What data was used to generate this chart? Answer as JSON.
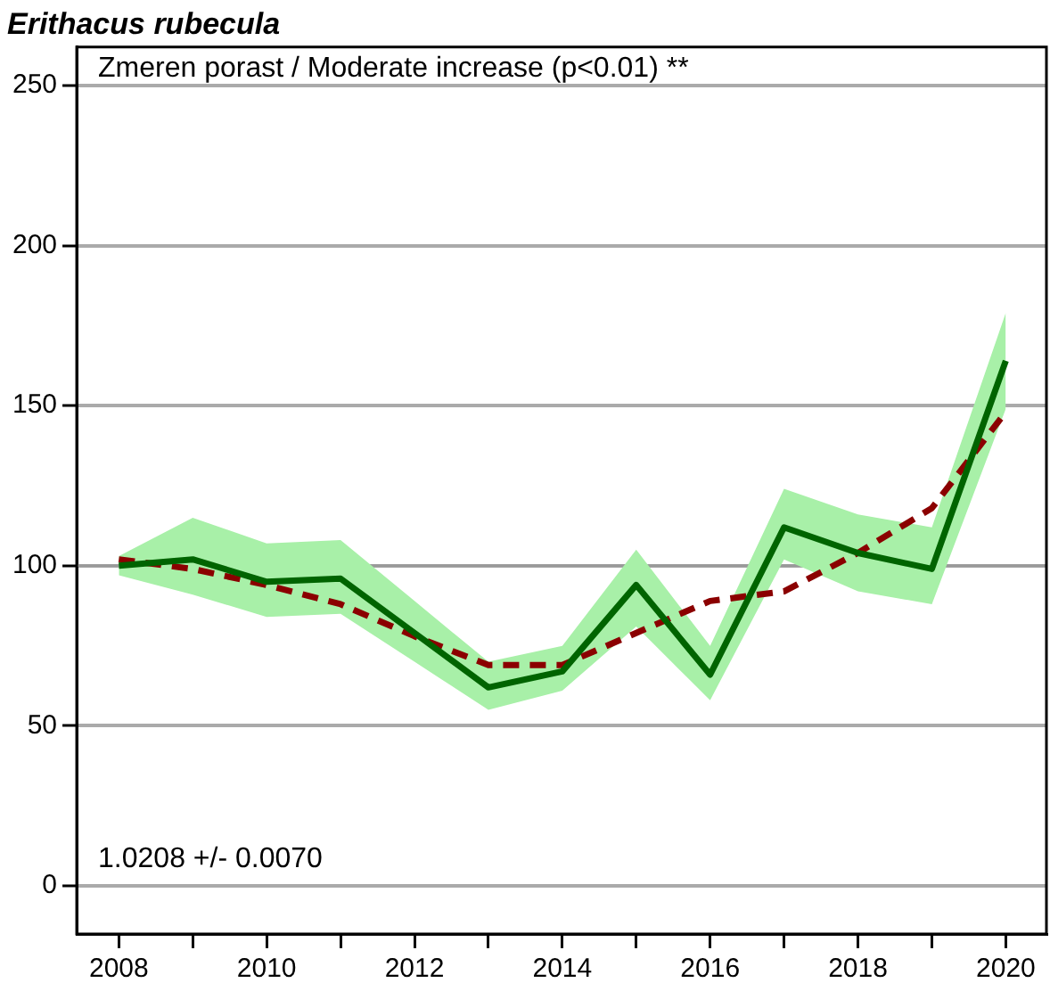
{
  "chart_data": {
    "type": "line",
    "title": "Erithacus rubecula",
    "annotations": [
      "Zmeren porast / Moderate increase (p<0.01) **",
      "1.0208 +/- 0.0070"
    ],
    "x": [
      2008,
      2009,
      2010,
      2011,
      2012,
      2013,
      2014,
      2015,
      2016,
      2017,
      2018,
      2019,
      2020
    ],
    "series": [
      {
        "color": "#006400",
        "line_style": "solid",
        "values": [
          100,
          102,
          95,
          96,
          79,
          62,
          67,
          94,
          66,
          112,
          104,
          99,
          164
        ],
        "lower": [
          97,
          91,
          84,
          85,
          70,
          55,
          61,
          81,
          58,
          102,
          92,
          88,
          149
        ],
        "upper": [
          103,
          115,
          107,
          108,
          89,
          70,
          75,
          105,
          75,
          124,
          116,
          112,
          179
        ]
      },
      {
        "color": "#8b0000",
        "line_style": "dashed",
        "values": [
          102,
          99,
          94,
          88,
          78,
          69,
          69,
          79,
          89,
          92,
          104,
          118,
          148
        ]
      }
    ],
    "xlim": [
      2007.43,
      2020.55
    ],
    "xticks": [
      2008,
      {
        "value": 2009,
        "label": null
      },
      2010,
      {
        "value": 2011,
        "label": null
      },
      2012,
      {
        "value": 2013,
        "label": null
      },
      2014,
      {
        "value": 2015,
        "label": null
      },
      2016,
      {
        "value": 2017,
        "label": null
      },
      2018,
      {
        "value": 2019,
        "label": null
      },
      2020
    ],
    "ylim": [
      -15,
      262
    ],
    "yticks": [
      0,
      50,
      100,
      150,
      200,
      250
    ],
    "ref_lines": [
      {
        "axis": "y",
        "value": 100,
        "color": "#999999"
      }
    ],
    "grid": "y",
    "legend": false,
    "marker": "none"
  }
}
